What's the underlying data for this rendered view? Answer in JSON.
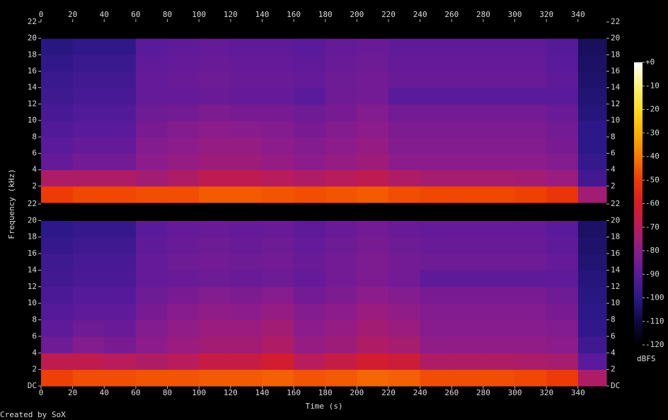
{
  "chart_data": {
    "type": "spectrogram",
    "xlabel": "Time (s)",
    "ylabel": "Frequency (kHz)",
    "xlim": [
      0,
      358
    ],
    "xticks": [
      0,
      20,
      40,
      60,
      80,
      100,
      120,
      140,
      160,
      180,
      200,
      220,
      240,
      260,
      280,
      300,
      320,
      340
    ],
    "x_bins": [
      0,
      20,
      40,
      60,
      80,
      100,
      120,
      140,
      160,
      180,
      200,
      220,
      240,
      260,
      280,
      300,
      320,
      340,
      358
    ],
    "colormap": [
      "#000000",
      "#0c0a40",
      "#2c1888",
      "#5a1a9c",
      "#8c1c8c",
      "#b81c5c",
      "#d81c24",
      "#ee3a04",
      "#f87a00",
      "#fcb000",
      "#fddc20",
      "#fff27a",
      "#ffffff"
    ],
    "channels": [
      {
        "ylim": [
          0,
          22
        ],
        "yticks": [
          2,
          4,
          6,
          8,
          10,
          12,
          14,
          16,
          18,
          20,
          22
        ],
        "y_bins": [
          0,
          2,
          4,
          6,
          8,
          10,
          12,
          14,
          16,
          18,
          20,
          22
        ],
        "values": [
          [
            -50,
            -48,
            -48,
            -47,
            -47,
            -45,
            -45,
            -46,
            -47,
            -46,
            -45,
            -47,
            -48,
            -48,
            -48,
            -49,
            -52,
            -75
          ],
          [
            -72,
            -72,
            -72,
            -75,
            -72,
            -68,
            -68,
            -70,
            -72,
            -70,
            -68,
            -72,
            -74,
            -74,
            -74,
            -75,
            -77,
            -95
          ],
          [
            -88,
            -85,
            -85,
            -80,
            -78,
            -76,
            -76,
            -78,
            -80,
            -78,
            -76,
            -80,
            -80,
            -80,
            -80,
            -80,
            -82,
            -98
          ],
          [
            -90,
            -88,
            -88,
            -82,
            -80,
            -78,
            -78,
            -80,
            -82,
            -80,
            -78,
            -82,
            -82,
            -82,
            -82,
            -82,
            -84,
            -100
          ],
          [
            -92,
            -90,
            -90,
            -84,
            -82,
            -80,
            -81,
            -82,
            -84,
            -82,
            -80,
            -83,
            -83,
            -83,
            -83,
            -83,
            -85,
            -100
          ],
          [
            -94,
            -92,
            -92,
            -86,
            -85,
            -83,
            -84,
            -84,
            -86,
            -84,
            -82,
            -85,
            -85,
            -85,
            -85,
            -85,
            -87,
            -102
          ],
          [
            -96,
            -94,
            -94,
            -88,
            -88,
            -87,
            -88,
            -88,
            -90,
            -86,
            -85,
            -90,
            -90,
            -90,
            -90,
            -90,
            -90,
            -103
          ],
          [
            -97,
            -95,
            -95,
            -88,
            -87,
            -86,
            -87,
            -87,
            -88,
            -86,
            -85,
            -87,
            -87,
            -87,
            -87,
            -87,
            -89,
            -104
          ],
          [
            -99,
            -97,
            -97,
            -89,
            -88,
            -87,
            -88,
            -88,
            -89,
            -87,
            -86,
            -88,
            -88,
            -88,
            -88,
            -88,
            -90,
            -105
          ],
          [
            -101,
            -99,
            -99,
            -90,
            -89,
            -88,
            -89,
            -89,
            -90,
            -88,
            -87,
            -89,
            -89,
            -89,
            -89,
            -89,
            -91,
            -106
          ],
          [
            -120,
            -120,
            -120,
            -120,
            -120,
            -120,
            -120,
            -120,
            -120,
            -120,
            -120,
            -120,
            -120,
            -120,
            -120,
            -120,
            -120,
            -120
          ]
        ]
      },
      {
        "ylim": [
          0,
          22
        ],
        "yticks": [
          {
            "value": 0,
            "label": "DC"
          },
          2,
          4,
          6,
          8,
          10,
          12,
          14,
          16,
          18,
          20,
          22
        ],
        "y_bins": [
          0,
          2,
          4,
          6,
          8,
          10,
          12,
          14,
          16,
          18,
          20,
          22
        ],
        "values": [
          [
            -49,
            -47,
            -47,
            -46,
            -46,
            -45,
            -45,
            -44,
            -46,
            -45,
            -43,
            -44,
            -47,
            -47,
            -47,
            -48,
            -50,
            -72
          ],
          [
            -68,
            -68,
            -70,
            -72,
            -70,
            -66,
            -66,
            -62,
            -70,
            -66,
            -62,
            -64,
            -72,
            -72,
            -72,
            -73,
            -74,
            -90
          ],
          [
            -86,
            -82,
            -84,
            -80,
            -77,
            -75,
            -75,
            -72,
            -78,
            -76,
            -72,
            -74,
            -79,
            -79,
            -79,
            -79,
            -80,
            -96
          ],
          [
            -89,
            -86,
            -87,
            -82,
            -79,
            -77,
            -77,
            -75,
            -80,
            -78,
            -75,
            -77,
            -81,
            -81,
            -81,
            -81,
            -82,
            -99
          ],
          [
            -91,
            -89,
            -89,
            -84,
            -81,
            -79,
            -80,
            -78,
            -82,
            -80,
            -77,
            -79,
            -82,
            -82,
            -82,
            -82,
            -84,
            -100
          ],
          [
            -93,
            -91,
            -91,
            -86,
            -84,
            -82,
            -83,
            -81,
            -85,
            -83,
            -80,
            -82,
            -84,
            -84,
            -84,
            -84,
            -86,
            -101
          ],
          [
            -95,
            -93,
            -93,
            -88,
            -87,
            -86,
            -87,
            -86,
            -88,
            -85,
            -83,
            -85,
            -89,
            -89,
            -89,
            -89,
            -89,
            -102
          ],
          [
            -96,
            -94,
            -94,
            -88,
            -86,
            -85,
            -86,
            -85,
            -87,
            -85,
            -83,
            -85,
            -86,
            -86,
            -86,
            -86,
            -88,
            -103
          ],
          [
            -98,
            -96,
            -96,
            -89,
            -87,
            -86,
            -87,
            -86,
            -88,
            -86,
            -84,
            -86,
            -87,
            -87,
            -87,
            -87,
            -89,
            -104
          ],
          [
            -100,
            -98,
            -98,
            -90,
            -88,
            -87,
            -88,
            -87,
            -89,
            -87,
            -85,
            -87,
            -88,
            -88,
            -88,
            -88,
            -90,
            -105
          ],
          [
            -120,
            -120,
            -120,
            -120,
            -120,
            -120,
            -120,
            -120,
            -120,
            -120,
            -120,
            -120,
            -120,
            -120,
            -120,
            -120,
            -120,
            -120
          ]
        ]
      }
    ],
    "colorbar": {
      "label": "dBFS",
      "lim": [
        -120,
        0
      ],
      "ticks": [
        {
          "value": 0,
          "label": "+0"
        },
        -10,
        -20,
        -30,
        -40,
        -50,
        -60,
        -70,
        -80,
        -90,
        -100,
        -110,
        -120
      ]
    }
  },
  "footer": "Created by SoX"
}
